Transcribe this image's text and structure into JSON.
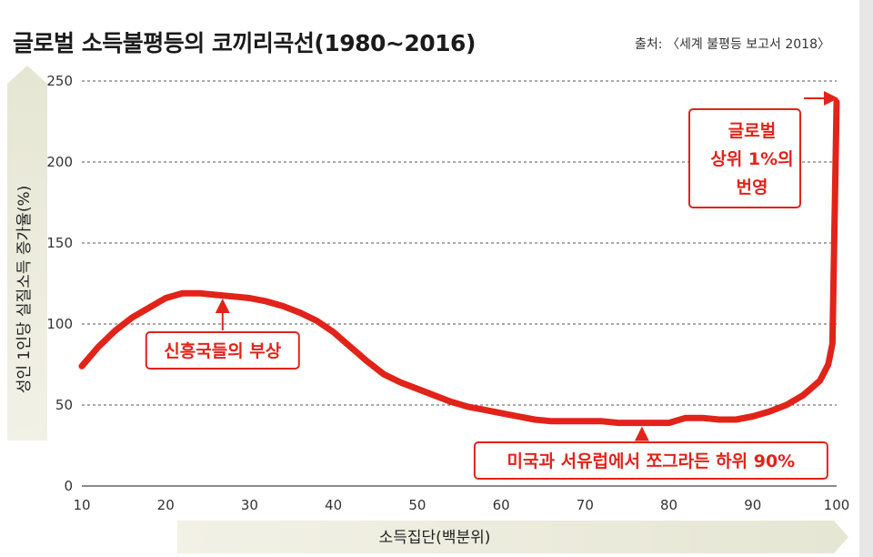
{
  "title": "글로벌 소득불평등의 코끼리곡선(1980~2016)",
  "source": "출처: 〈세계 불평등 보고서 2018〉",
  "chart_data": {
    "type": "line",
    "xlabel": "소득집단(백분위)",
    "ylabel": "성인 1인당 실질소득 증가율(%)",
    "xlim": [
      10,
      100
    ],
    "ylim": [
      0,
      250
    ],
    "x_ticks": [
      10,
      20,
      30,
      40,
      50,
      60,
      70,
      80,
      90,
      100
    ],
    "y_ticks": [
      0,
      50,
      100,
      150,
      200,
      250
    ],
    "grid": "horizontal dashed",
    "series": [
      {
        "color": "#e2231a",
        "x": [
          10,
          12,
          14,
          16,
          18,
          20,
          22,
          24,
          26,
          28,
          30,
          32,
          34,
          36,
          38,
          40,
          42,
          44,
          46,
          48,
          50,
          52,
          54,
          56,
          58,
          60,
          62,
          64,
          66,
          68,
          70,
          72,
          74,
          76,
          78,
          80,
          82,
          84,
          86,
          88,
          90,
          92,
          94,
          96,
          98,
          99,
          99.5,
          100
        ],
        "y": [
          74,
          86,
          96,
          104,
          110,
          116,
          119,
          119,
          118,
          117,
          116,
          114,
          111,
          107,
          102,
          95,
          86,
          77,
          69,
          64,
          60,
          56,
          52,
          49,
          47,
          45,
          43,
          41,
          40,
          40,
          40,
          40,
          39,
          39,
          39,
          39,
          42,
          42,
          41,
          41,
          43,
          46,
          50,
          56,
          65,
          75,
          88,
          237
        ]
      }
    ],
    "annotations": [
      {
        "text": "신흥국들의 부상",
        "x": 27,
        "y": 118
      },
      {
        "text": "미국과 서유럽에서 쪼그라든 하위 90%",
        "x": 77,
        "y": 39
      },
      {
        "text_lines": [
          "글로벌",
          "상위 1%의",
          "번영"
        ],
        "x": 100,
        "y": 218
      }
    ]
  }
}
